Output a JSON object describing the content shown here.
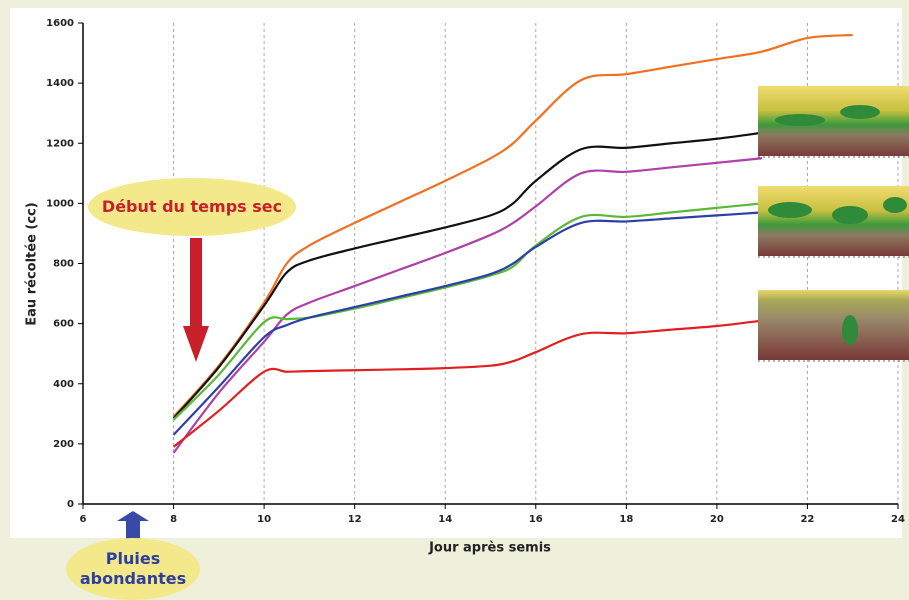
{
  "chart_data": {
    "type": "line",
    "xlabel": "Jour après semis",
    "ylabel": "Eau récoltée (cc)",
    "x": [
      8,
      9,
      10,
      10.5,
      11,
      12,
      13,
      14,
      15,
      15.5,
      16,
      17,
      18,
      19,
      20,
      21,
      22,
      23
    ],
    "series": [
      {
        "color": "#f07020",
        "values": [
          290,
          460,
          670,
          800,
          860,
          935,
          1005,
          1075,
          1150,
          1200,
          1275,
          1410,
          1430,
          1455,
          1480,
          1505,
          1550,
          1560
        ]
      },
      {
        "color": "#111111",
        "values": [
          285,
          455,
          660,
          770,
          810,
          850,
          885,
          920,
          960,
          1000,
          1075,
          1180,
          1185,
          1200,
          1215,
          1235,
          null,
          null
        ]
      },
      {
        "color": "#b040a8",
        "values": [
          170,
          370,
          540,
          630,
          670,
          725,
          780,
          835,
          895,
          935,
          990,
          1100,
          1105,
          1120,
          1135,
          1150,
          null,
          null
        ]
      },
      {
        "color": "#5cb838",
        "values": [
          280,
          430,
          605,
          615,
          620,
          650,
          685,
          720,
          760,
          790,
          860,
          955,
          955,
          970,
          985,
          1000,
          null,
          null
        ]
      },
      {
        "color": "#2c40a8",
        "values": [
          230,
          390,
          555,
          595,
          620,
          655,
          690,
          725,
          765,
          800,
          855,
          935,
          940,
          950,
          960,
          970,
          null,
          null
        ]
      },
      {
        "color": "#e02020",
        "values": [
          190,
          310,
          440,
          440,
          442,
          445,
          448,
          452,
          460,
          475,
          505,
          565,
          568,
          580,
          592,
          610,
          null,
          null
        ]
      }
    ],
    "xlim": [
      6,
      24
    ],
    "xticks": [
      6,
      8,
      10,
      12,
      14,
      16,
      18,
      20,
      22,
      24
    ],
    "ylim": [
      0,
      1600
    ],
    "yticks": [
      0,
      200,
      400,
      600,
      800,
      1000,
      1200,
      1400,
      1600
    ],
    "grid": true,
    "annotations": [
      "Début du temps sec",
      "Pluies abondantes"
    ]
  }
}
